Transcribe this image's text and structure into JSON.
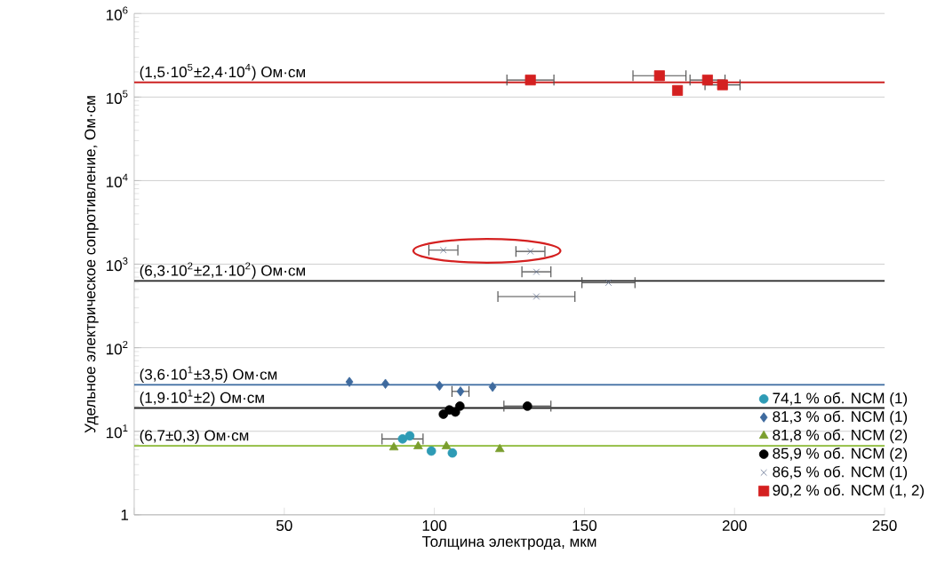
{
  "chart_data": {
    "type": "scatter",
    "xlabel": "Толщина электрода, мкм",
    "ylabel": "Удельное электрическое сопротивление, Ом·см",
    "xlim": [
      0,
      250
    ],
    "xticks": [
      {
        "value": 0,
        "label": null
      },
      50,
      100,
      150,
      200,
      250
    ],
    "ylim": [
      1,
      1000000
    ],
    "log": "y",
    "yticks": [
      1,
      {
        "value": 10,
        "label": "10$^{1}$"
      },
      {
        "value": 100,
        "label": "10$^{2}$"
      },
      {
        "value": 1000,
        "label": "10$^{3}$"
      },
      {
        "value": 10000,
        "label": "10$^{4}$"
      },
      {
        "value": 100000,
        "label": "10$^{5}$"
      },
      {
        "value": 1000000,
        "label": "10$^{6}$"
      }
    ],
    "grid": "y",
    "legend": "bottom right",
    "series": [
      {
        "name": "74,1 % об. NCM (1)",
        "color": "#2e9bb5",
        "marker": "circle",
        "x": [
          89.4,
          91.8,
          99,
          106
        ],
        "values": [
          8.1,
          8.8,
          5.8,
          5.5
        ],
        "xerrors": [
          7,
          null,
          null,
          null
        ]
      },
      {
        "name": "81,3 % об. NCM (1)",
        "color": "#3e6a9e",
        "marker": "diamond",
        "x": [
          71.7,
          83.7,
          101.7,
          108.7,
          119.4
        ],
        "values": [
          39,
          37,
          35,
          30,
          34
        ],
        "xerrors": [
          null,
          null,
          null,
          3,
          null
        ]
      },
      {
        "name": "81,8 % об. NCM (2)",
        "color": "#7a9e2e",
        "marker": "triangle",
        "x": [
          86.5,
          94.6,
          104,
          121.8
        ],
        "values": [
          6.4,
          6.6,
          6.6,
          6.1
        ],
        "xerrors": [
          null,
          null,
          null,
          null
        ]
      },
      {
        "name": "85,9 % об. NCM (2)",
        "color": "#000000",
        "marker": "circle",
        "x": [
          103,
          105,
          107,
          108.5,
          131
        ],
        "values": [
          16,
          18,
          17,
          20,
          20
        ],
        "xerrors": [
          null,
          null,
          null,
          null,
          8
        ]
      },
      {
        "name": "86,5 % об. NCM (1)",
        "color": "#5a6a8a",
        "marker": "cross",
        "x": [
          103,
          132,
          134,
          158,
          134
        ],
        "values": [
          1470,
          1420,
          810,
          600,
          410
        ],
        "xerrors": [
          5,
          5,
          5,
          9,
          13
        ]
      },
      {
        "name": "90,2 % об. NCM (1, 2)",
        "color": "#d42020",
        "marker": "square",
        "x": [
          132,
          175,
          181,
          191,
          196
        ],
        "values": [
          160000,
          180000,
          120000,
          160000,
          140000
        ],
        "xerrors": [
          8,
          9,
          null,
          6,
          6
        ]
      }
    ],
    "ref_lines": [
      {
        "axis": "y",
        "value": 150000,
        "label": "(1,5·10$^{5}$±2,4·10$^{4}$) Ом·см",
        "color": "#cc2222"
      },
      {
        "axis": "y",
        "value": 630,
        "label": "(6,3·10$^{2}$±2,1·10$^{2}$) Ом·см",
        "color": "#222222"
      },
      {
        "axis": "y",
        "value": 36,
        "label": "(3,6·10$^{1}$±3,5) Ом·см",
        "color": "#3a6aa0"
      },
      {
        "axis": "y",
        "value": 19,
        "label": "(1,9·10$^{1}$±2) Ом·см",
        "color": "#222222"
      },
      {
        "axis": "y",
        "value": 6.7,
        "label": "(6,7±0,3) Ом·см",
        "color": "#8ab833"
      }
    ]
  }
}
